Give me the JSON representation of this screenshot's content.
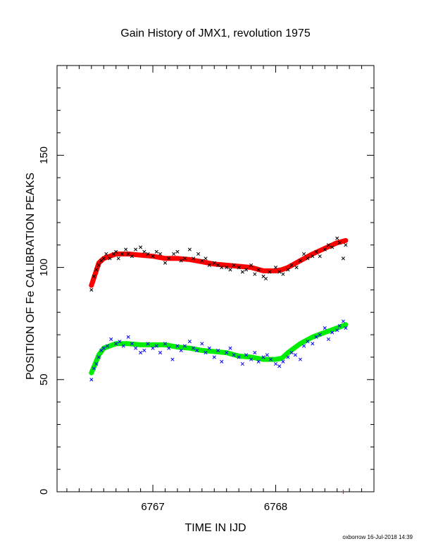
{
  "chart_data": {
    "type": "scatter",
    "title": "Gain History of JMX1, revolution 1975",
    "xlabel": "TIME IN IJD",
    "ylabel": "POSITION OF Fe CALIBRATION PEAKS",
    "xlim": [
      6766.22,
      6768.8
    ],
    "ylim": [
      0,
      190
    ],
    "x_ticks": [
      6767,
      6768
    ],
    "y_ticks": [
      0,
      50,
      100,
      150
    ],
    "footer": "oxborrow 16-Jul-2018 14:39",
    "colors": {
      "upper_points": "#000000",
      "upper_fit": "#ff0000",
      "lower_points": "#0000ff",
      "lower_fit": "#00ee00",
      "axes": "#000000",
      "marker": "#ff0000"
    },
    "marker_x": 6768.55,
    "series": [
      {
        "role": "upper-points",
        "x": [
          6766.5,
          6766.52,
          6766.54,
          6766.56,
          6766.58,
          6766.6,
          6766.62,
          6766.65,
          6766.68,
          6766.7,
          6766.72,
          6766.75,
          6766.78,
          6766.8,
          6766.83,
          6766.86,
          6766.9,
          6766.93,
          6766.96,
          6767.0,
          6767.03,
          6767.06,
          6767.1,
          6767.13,
          6767.17,
          6767.2,
          6767.23,
          6767.26,
          6767.3,
          6767.33,
          6767.37,
          6767.4,
          6767.43,
          6767.46,
          6767.5,
          6767.53,
          6767.56,
          6767.6,
          6767.63,
          6767.66,
          6767.7,
          6767.73,
          6767.76,
          6767.8,
          6767.83,
          6767.86,
          6767.9,
          6767.92,
          6767.95,
          6768.0,
          6768.03,
          6768.06,
          6768.1,
          6768.13,
          6768.17,
          6768.2,
          6768.23,
          6768.26,
          6768.3,
          6768.33,
          6768.36,
          6768.4,
          6768.43,
          6768.46,
          6768.5,
          6768.52,
          6768.55,
          6768.57
        ],
        "y": [
          90,
          96,
          99,
          101,
          103,
          104,
          106,
          104,
          106,
          107,
          104,
          106,
          108,
          106,
          105,
          108,
          109,
          107,
          106,
          105,
          107,
          106,
          102,
          104,
          106,
          107,
          103,
          104,
          108,
          104,
          106,
          103,
          104,
          101,
          102,
          101,
          100,
          100,
          99,
          101,
          100,
          98,
          99,
          101,
          97,
          99,
          96,
          95,
          98,
          100,
          98,
          97,
          99,
          101,
          100,
          103,
          106,
          104,
          105,
          107,
          105,
          108,
          110,
          109,
          113,
          111,
          104,
          110
        ]
      },
      {
        "role": "upper-fit",
        "x": [
          6766.5,
          6766.53,
          6766.56,
          6766.6,
          6766.7,
          6766.8,
          6766.9,
          6767.0,
          6767.1,
          6767.2,
          6767.3,
          6767.4,
          6767.5,
          6767.6,
          6767.7,
          6767.8,
          6767.9,
          6768.0,
          6768.05,
          6768.1,
          6768.2,
          6768.3,
          6768.4,
          6768.5,
          6768.57
        ],
        "y": [
          92,
          97,
          102,
          104,
          106,
          106,
          105.5,
          105,
          104,
          104,
          103.5,
          102.5,
          101.5,
          101,
          100.5,
          100,
          98.5,
          98.5,
          99,
          100,
          103,
          106,
          108.5,
          111,
          112
        ]
      },
      {
        "role": "lower-points",
        "x": [
          6766.5,
          6766.52,
          6766.54,
          6766.56,
          6766.58,
          6766.6,
          6766.63,
          6766.66,
          6766.7,
          6766.73,
          6766.76,
          6766.8,
          6766.83,
          6766.86,
          6766.9,
          6766.93,
          6766.96,
          6767.0,
          6767.03,
          6767.06,
          6767.1,
          6767.13,
          6767.16,
          6767.2,
          6767.23,
          6767.26,
          6767.3,
          6767.33,
          6767.36,
          6767.4,
          6767.43,
          6767.46,
          6767.5,
          6767.53,
          6767.56,
          6767.6,
          6767.63,
          6767.66,
          6767.7,
          6767.73,
          6767.76,
          6767.8,
          6767.83,
          6767.86,
          6767.9,
          6767.93,
          6767.96,
          6768.0,
          6768.03,
          6768.06,
          6768.1,
          6768.13,
          6768.16,
          6768.2,
          6768.23,
          6768.26,
          6768.3,
          6768.33,
          6768.36,
          6768.4,
          6768.43,
          6768.46,
          6768.5,
          6768.52,
          6768.55,
          6768.57
        ],
        "y": [
          50,
          55,
          57,
          60,
          63,
          64,
          65,
          68,
          66,
          67,
          65,
          69,
          66,
          64,
          62,
          63,
          66,
          64,
          65,
          62,
          66,
          64,
          59,
          65,
          63,
          65,
          67,
          64,
          63,
          66,
          62,
          64,
          60,
          63,
          58,
          62,
          64,
          61,
          60,
          57,
          61,
          59,
          62,
          58,
          60,
          61,
          59,
          57,
          56,
          58,
          60,
          62,
          61,
          59,
          65,
          67,
          66,
          69,
          70,
          73,
          68,
          71,
          72,
          74,
          76,
          73
        ]
      },
      {
        "role": "lower-fit",
        "x": [
          6766.5,
          6766.53,
          6766.56,
          6766.6,
          6766.7,
          6766.8,
          6766.9,
          6767.0,
          6767.1,
          6767.2,
          6767.3,
          6767.4,
          6767.5,
          6767.6,
          6767.7,
          6767.8,
          6767.9,
          6768.0,
          6768.05,
          6768.1,
          6768.2,
          6768.3,
          6768.4,
          6768.5,
          6768.57
        ],
        "y": [
          53,
          57,
          61,
          64,
          66,
          66,
          65.5,
          65.5,
          65.5,
          64.5,
          64,
          63,
          62.5,
          62,
          60.5,
          60,
          59,
          59,
          59.5,
          62,
          66,
          69,
          71,
          73,
          74.5
        ]
      }
    ]
  }
}
